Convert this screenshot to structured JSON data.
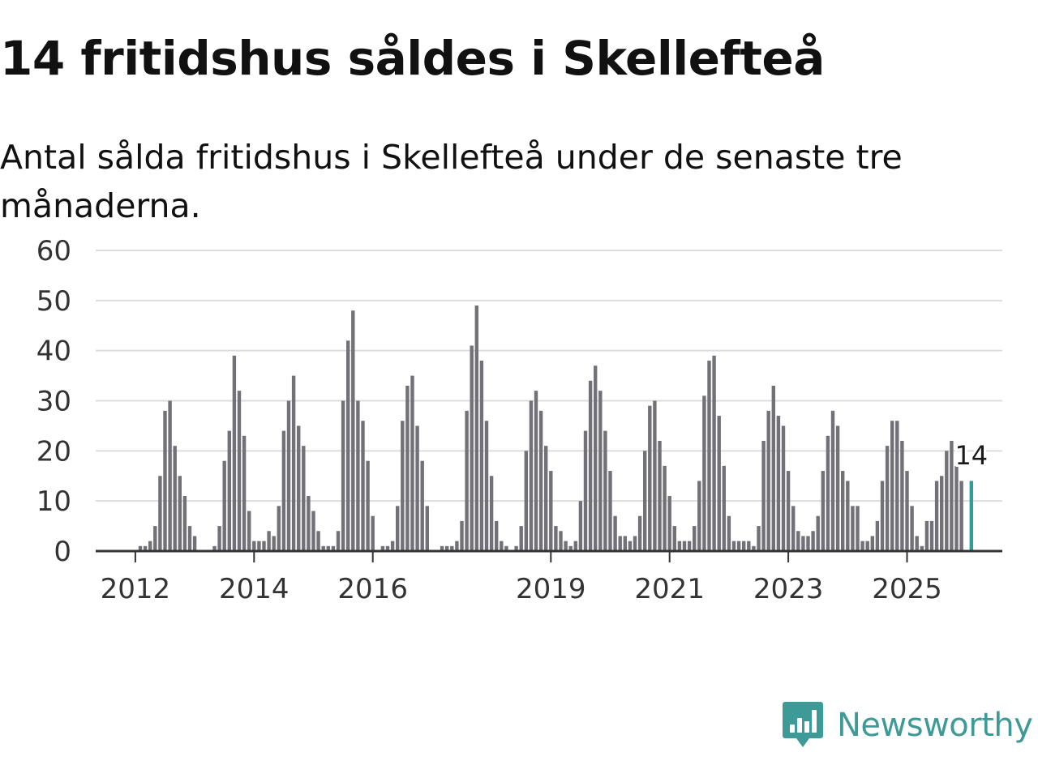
{
  "header": {
    "title": "14 fritidshus såldes i Skellefteå",
    "subtitle": "Antal sålda fritidshus i Skellefteå under de senaste tre månaderna."
  },
  "brand": {
    "name": "Newsworthy",
    "color": "#3d9a97",
    "icon": "bar-chart-speech-bubble-icon"
  },
  "colors": {
    "bar": "#727178",
    "highlight": "#2e9e97",
    "grid": "#dddddd",
    "axis": "#333333"
  },
  "chart_data": {
    "type": "bar",
    "title": "14 fritidshus såldes i Skellefteå",
    "subtitle": "Antal sålda fritidshus i Skellefteå under de senaste tre månaderna.",
    "xlabel": "",
    "ylabel": "",
    "ylim": [
      0,
      60
    ],
    "y_ticks": [
      0,
      10,
      20,
      30,
      40,
      50,
      60
    ],
    "x_tick_labels": [
      {
        "label": "2012",
        "index": 7
      },
      {
        "label": "2014",
        "index": 31
      },
      {
        "label": "2016",
        "index": 55
      },
      {
        "label": "2019",
        "index": 91
      },
      {
        "label": "2021",
        "index": 115
      },
      {
        "label": "2023",
        "index": 139
      },
      {
        "label": "2025",
        "index": 163
      }
    ],
    "grid": true,
    "values": [
      0,
      0,
      0,
      0,
      0,
      0,
      0,
      0,
      1,
      1,
      2,
      5,
      15,
      28,
      30,
      21,
      15,
      11,
      5,
      3,
      0,
      0,
      0,
      1,
      5,
      18,
      24,
      39,
      32,
      23,
      8,
      2,
      2,
      2,
      4,
      3,
      9,
      24,
      30,
      35,
      25,
      21,
      11,
      8,
      4,
      1,
      1,
      1,
      4,
      30,
      42,
      48,
      30,
      26,
      18,
      7,
      0,
      1,
      1,
      2,
      9,
      26,
      33,
      35,
      25,
      18,
      9,
      0,
      0,
      1,
      1,
      1,
      2,
      6,
      28,
      41,
      49,
      38,
      26,
      15,
      6,
      2,
      1,
      0,
      1,
      5,
      20,
      30,
      32,
      28,
      21,
      16,
      5,
      4,
      2,
      1,
      2,
      10,
      24,
      34,
      37,
      32,
      24,
      16,
      7,
      3,
      3,
      2,
      3,
      7,
      20,
      29,
      30,
      22,
      17,
      11,
      5,
      2,
      2,
      2,
      5,
      14,
      31,
      38,
      39,
      27,
      17,
      7,
      2,
      2,
      2,
      2,
      1,
      5,
      22,
      28,
      33,
      27,
      25,
      16,
      9,
      4,
      3,
      3,
      4,
      7,
      16,
      23,
      28,
      25,
      16,
      14,
      9,
      9,
      2,
      2,
      3,
      6,
      14,
      21,
      26,
      26,
      22,
      16,
      9,
      3,
      1,
      6,
      6,
      14,
      15,
      20,
      22,
      17,
      14
    ],
    "highlight_index": 176,
    "highlight_label": "14",
    "highlight_value": 14
  }
}
